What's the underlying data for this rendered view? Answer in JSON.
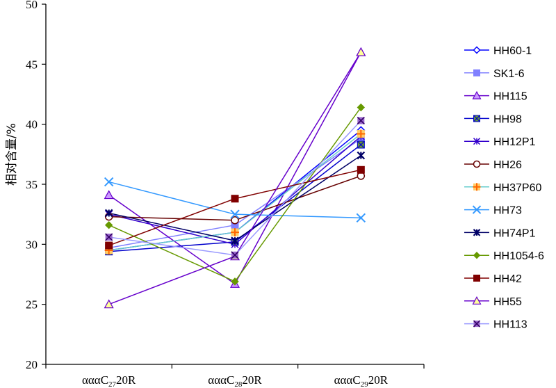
{
  "chart_data": {
    "type": "line",
    "title": "",
    "xlabel": "",
    "ylabel": "相对含量/%",
    "ylim": [
      20,
      50
    ],
    "yticks": [
      20,
      25,
      30,
      35,
      40,
      45,
      50
    ],
    "categories": [
      {
        "prefix": "ααα",
        "main": "C",
        "sub": "27",
        "suffix": "20R"
      },
      {
        "prefix": "ααα",
        "main": "C",
        "sub": "28",
        "suffix": "20R"
      },
      {
        "prefix": "ααα",
        "main": "C",
        "sub": "29",
        "suffix": "20R"
      }
    ],
    "legend_position": "right",
    "series": [
      {
        "name": "HH60-1",
        "values": [
          29.5,
          31.0,
          39.5
        ],
        "color": "#0000ff",
        "marker": "diamond-open"
      },
      {
        "name": "SK1-6",
        "values": [
          29.7,
          31.6,
          38.8
        ],
        "color": "#8080ff",
        "marker": "square"
      },
      {
        "name": "HH115",
        "values": [
          34.1,
          26.7,
          46.0
        ],
        "color": "#6600cc",
        "marker": "triangle",
        "fill": "#cc99ff"
      },
      {
        "name": "HH98",
        "values": [
          29.4,
          30.2,
          38.3
        ],
        "color": "#0000cc",
        "marker": "square-x",
        "fill": "#669933"
      },
      {
        "name": "HH12P1",
        "values": [
          32.5,
          30.0,
          39.0
        ],
        "color": "#3300cc",
        "marker": "star"
      },
      {
        "name": "HH26",
        "values": [
          32.3,
          32.0,
          35.7
        ],
        "color": "#660000",
        "marker": "circle"
      },
      {
        "name": "HH37P60",
        "values": [
          29.5,
          31.0,
          39.2
        ],
        "color": "#66cccc",
        "marker": "plus-square",
        "fill": "#ffcc66"
      },
      {
        "name": "HH73",
        "values": [
          35.2,
          32.5,
          32.2
        ],
        "color": "#3399ff",
        "marker": "x"
      },
      {
        "name": "HH74P1",
        "values": [
          32.6,
          30.3,
          37.4
        ],
        "color": "#000066",
        "marker": "star-bold"
      },
      {
        "name": "HH1054-6",
        "values": [
          31.6,
          26.9,
          41.4
        ],
        "color": "#669900",
        "marker": "diamond"
      },
      {
        "name": "HH42",
        "values": [
          29.9,
          33.8,
          36.2
        ],
        "color": "#800000",
        "marker": "square"
      },
      {
        "name": "HH55",
        "values": [
          25.0,
          29.0,
          46.0
        ],
        "color": "#6600cc",
        "marker": "triangle",
        "fill": "#ffff99"
      },
      {
        "name": "HH113",
        "values": [
          30.6,
          29.1,
          40.3
        ],
        "color": "#9999ff",
        "marker": "x-box",
        "fill": "#9966cc"
      }
    ]
  }
}
